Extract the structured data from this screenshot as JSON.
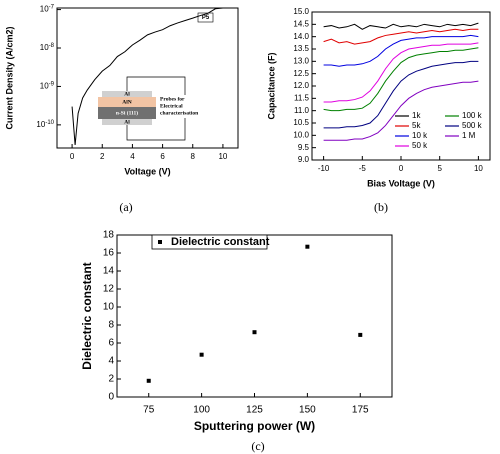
{
  "chart_data": [
    {
      "type": "line",
      "caption": "(a)",
      "xlabel": "Voltage (V)",
      "ylabel": "Current Density (A/cm2)",
      "annotation": "P5",
      "yscale": "log",
      "color": "#000000",
      "x": [
        0,
        0.2,
        0.4,
        0.7,
        1,
        1.5,
        2,
        2.5,
        3,
        3.5,
        4,
        4.5,
        5,
        5.5,
        6,
        6.5,
        7,
        7.5,
        8,
        8.5,
        9,
        9.5,
        10
      ],
      "values": [
        3e-10,
        3e-11,
        2e-10,
        5e-10,
        8e-10,
        1.5e-09,
        2.5e-09,
        3.5e-09,
        6e-09,
        8e-09,
        1.2e-08,
        1.6e-08,
        2.2e-08,
        2.6e-08,
        3e-08,
        3.8e-08,
        4.5e-08,
        5.2e-08,
        6e-08,
        7e-08,
        8e-08,
        1.05e-07,
        1.1e-07
      ],
      "xlim": [
        -1,
        11
      ],
      "xticks": [
        0,
        2,
        4,
        6,
        8,
        10
      ],
      "ylim": [
        2.5e-11,
        1.1e-07
      ],
      "yticks": [
        {
          "value": 1e-10,
          "label": "10-10"
        },
        {
          "value": 1e-09,
          "label": "10-9"
        },
        {
          "value": 1e-08,
          "label": "10-8"
        },
        {
          "value": 1e-07,
          "label": "10-7"
        }
      ],
      "inset": {
        "layers": [
          "Al",
          "AlN",
          "n-Si (111)",
          "Al"
        ],
        "probe_label": [
          "Probes for",
          "Electrical",
          "characterisation"
        ]
      }
    },
    {
      "type": "line",
      "caption": "(b)",
      "xlabel": "Bias Voltage (V)",
      "ylabel": "Capacitance (F)",
      "legend": "lower right",
      "x": [
        -10,
        -9,
        -8,
        -7,
        -6,
        -5,
        -4,
        -3,
        -2,
        -1,
        0,
        1,
        2,
        3,
        4,
        5,
        6,
        7,
        8,
        9,
        10
      ],
      "series": [
        {
          "name": "1k",
          "color": "#000000",
          "values": [
            14.4,
            14.45,
            14.35,
            14.4,
            14.5,
            14.3,
            14.45,
            14.4,
            14.35,
            14.5,
            14.4,
            14.45,
            14.4,
            14.5,
            14.45,
            14.4,
            14.5,
            14.45,
            14.5,
            14.45,
            14.55
          ]
        },
        {
          "name": "5k",
          "color": "#e00000",
          "values": [
            13.8,
            13.9,
            13.75,
            13.8,
            13.7,
            13.75,
            13.8,
            13.95,
            14.05,
            14.1,
            14.15,
            14.2,
            14.15,
            14.2,
            14.25,
            14.2,
            14.25,
            14.3,
            14.25,
            14.3,
            14.3
          ]
        },
        {
          "name": "10 k",
          "color": "#0000e0",
          "values": [
            12.85,
            12.85,
            12.8,
            12.85,
            12.85,
            12.9,
            13.0,
            13.2,
            13.5,
            13.7,
            13.85,
            13.9,
            13.95,
            13.95,
            14.0,
            14.0,
            14.0,
            14.0,
            14.0,
            14.05,
            14.0
          ]
        },
        {
          "name": "50 k",
          "color": "#e000e0",
          "values": [
            11.35,
            11.35,
            11.4,
            11.4,
            11.45,
            11.55,
            11.8,
            12.2,
            12.7,
            13.1,
            13.35,
            13.5,
            13.55,
            13.6,
            13.65,
            13.65,
            13.7,
            13.7,
            13.7,
            13.7,
            13.75
          ]
        },
        {
          "name": "100 k",
          "color": "#008000",
          "values": [
            11.05,
            11.0,
            11.0,
            11.05,
            11.05,
            11.1,
            11.3,
            11.7,
            12.2,
            12.6,
            12.95,
            13.15,
            13.25,
            13.3,
            13.35,
            13.4,
            13.4,
            13.45,
            13.45,
            13.5,
            13.55
          ]
        },
        {
          "name": "500 k",
          "color": "#000080",
          "values": [
            10.3,
            10.3,
            10.3,
            10.35,
            10.35,
            10.4,
            10.5,
            10.8,
            11.3,
            11.8,
            12.2,
            12.45,
            12.6,
            12.7,
            12.8,
            12.85,
            12.9,
            12.95,
            12.95,
            13.0,
            13.0
          ]
        },
        {
          "name": "1 M",
          "color": "#8000c0",
          "values": [
            9.8,
            9.8,
            9.8,
            9.8,
            9.85,
            9.85,
            9.95,
            10.1,
            10.4,
            10.8,
            11.2,
            11.5,
            11.7,
            11.85,
            11.95,
            12.0,
            12.05,
            12.1,
            12.15,
            12.15,
            12.2
          ]
        }
      ],
      "xlim": [
        -11.5,
        11.5
      ],
      "xticks": [
        -10,
        -5,
        0,
        5,
        10
      ],
      "ylim": [
        9,
        15
      ],
      "yticks": [
        {
          "value": 9,
          "label": "9.0"
        },
        9.5,
        {
          "value": 10,
          "label": "10.0"
        },
        10.5,
        {
          "value": 11,
          "label": "11.0"
        },
        11.5,
        {
          "value": 12,
          "label": "12.0"
        },
        12.5,
        {
          "value": 13,
          "label": "13.0"
        },
        13.5,
        {
          "value": 14,
          "label": "14.0"
        },
        14.5,
        {
          "value": 15,
          "label": "15.0"
        }
      ]
    },
    {
      "type": "scatter",
      "caption": "(c)",
      "xlabel": "Sputtering power (W)",
      "ylabel": "Dielectric constant",
      "legend": "upper left",
      "x": [
        75,
        100,
        125,
        150,
        175
      ],
      "series": [
        {
          "name": "Dielectric constant",
          "color": "#000000",
          "values": [
            1.8,
            4.7,
            7.2,
            16.7,
            6.9
          ]
        }
      ],
      "xlim": [
        60,
        190
      ],
      "xticks": [
        75,
        100,
        125,
        150,
        175
      ],
      "ylim": [
        0,
        18
      ],
      "yticks": [
        0,
        2,
        4,
        6,
        8,
        10,
        12,
        14,
        16,
        18
      ]
    }
  ]
}
